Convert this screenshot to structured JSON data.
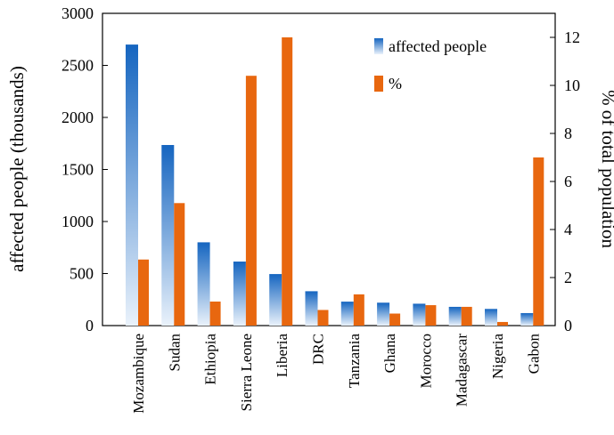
{
  "chart_data": {
    "type": "bar",
    "y_label": "affected people (thousands)",
    "y2_label": "% of total population",
    "categories": [
      "Mozambique",
      "Sudan",
      "Ethiopia",
      "Sierra Leone",
      "Liberia",
      "DRC",
      "Tanzania",
      "Ghana",
      "Morocco",
      "Madagascar",
      "Nigeria",
      "Gabon"
    ],
    "series": [
      {
        "name": "affected people",
        "color": "#1a6fc4",
        "values": [
          2700,
          1735,
          800,
          615,
          495,
          330,
          230,
          220,
          210,
          180,
          160,
          120
        ]
      },
      {
        "name": "%",
        "color": "#e8670f",
        "axis": "y2",
        "values": [
          2.75,
          5.1,
          1.0,
          10.4,
          12.0,
          0.65,
          1.3,
          0.5,
          0.85,
          0.78,
          0.15,
          7.0
        ]
      }
    ],
    "ylim": [
      0,
      3000
    ],
    "yticks": [
      0,
      500,
      1000,
      1500,
      2000,
      2500,
      3000
    ],
    "y2lim": [
      0,
      13
    ],
    "y2ticks": [
      0,
      2,
      4,
      6,
      8,
      10,
      12
    ],
    "legend": "top-right"
  }
}
